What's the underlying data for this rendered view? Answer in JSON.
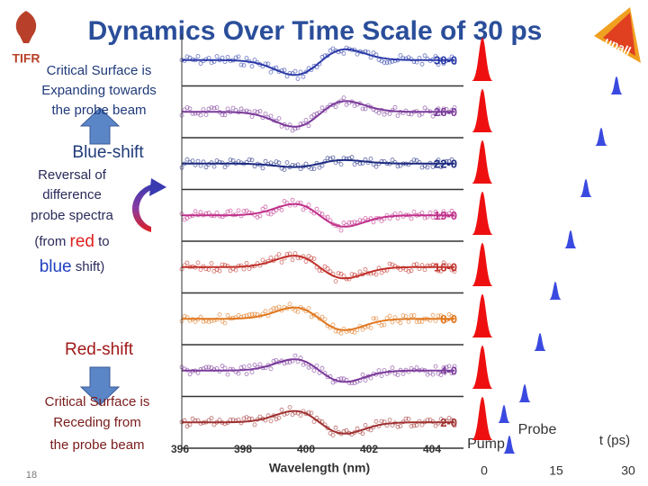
{
  "title": "Dynamics Over Time Scale of 30 ps",
  "left": {
    "expanding": [
      "Critical Surface is",
      "Expanding towards",
      "the probe beam"
    ],
    "blue_shift": "Blue-shift",
    "reversal": [
      "Reversal of",
      "difference",
      "probe spectra"
    ],
    "reversal_line4": [
      "(from ",
      "red",
      " to"
    ],
    "reversal_line5": [
      "blue",
      " shift)"
    ],
    "red_shift": "Red-shift",
    "receding": [
      "Critical Surface is",
      "Receding from",
      "the probe beam"
    ]
  },
  "spectra": {
    "panels": [
      {
        "label": "30-0",
        "color": "#2a3aa8"
      },
      {
        "label": "26-0",
        "color": "#7a3a9a"
      },
      {
        "label": "22-0",
        "color": "#1c2a80"
      },
      {
        "label": "19-0",
        "color": "#c0308a"
      },
      {
        "label": "16-0",
        "color": "#c0302a"
      },
      {
        "label": "8-0",
        "color": "#e07820"
      },
      {
        "label": "4-0",
        "color": "#7a3a9a"
      },
      {
        "label": "2-0",
        "color": "#a03030"
      }
    ],
    "x_ticks": [
      "396",
      "398",
      "400",
      "402",
      "404"
    ],
    "x_label": "Wavelength (nm)"
  },
  "timeline": {
    "pump": "Pump",
    "probe": "Probe",
    "t_label": "t (ps)",
    "ticks": [
      "0",
      "15",
      "30"
    ]
  },
  "slide_number": "18"
}
